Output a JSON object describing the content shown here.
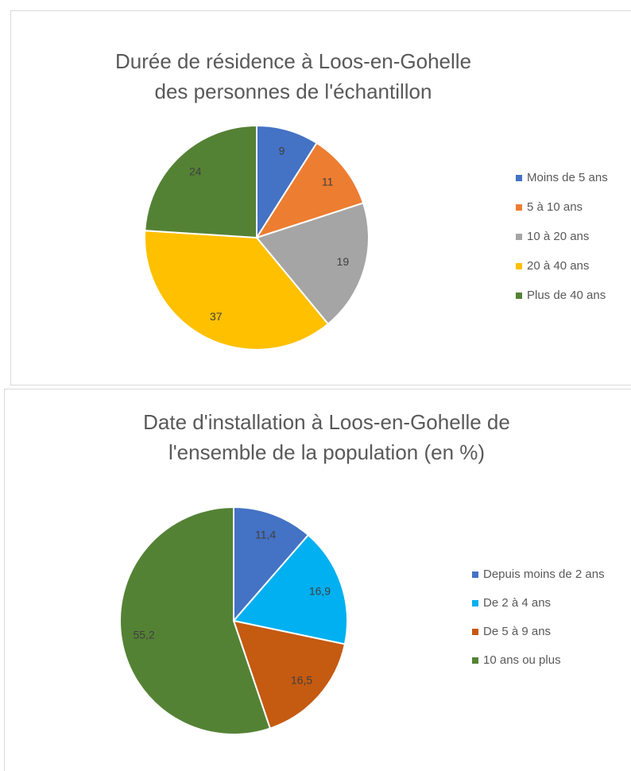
{
  "chart_data": [
    {
      "type": "pie",
      "title": "Durée de résidence à Loos-en-Gohelle des personnes de l'échantillon",
      "categories": [
        "Moins de 5 ans",
        "5 à 10 ans",
        "10 à 20 ans",
        "20 à 40 ans",
        "Plus de 40 ans"
      ],
      "values": [
        9,
        11,
        19,
        37,
        24
      ],
      "colors": [
        "#4472c4",
        "#ed7d31",
        "#a5a5a5",
        "#ffc000",
        "#548235"
      ],
      "legend": "right"
    },
    {
      "type": "pie",
      "title": "Date d'installation à Loos-en-Gohelle de l'ensemble de la population (en %)",
      "categories": [
        "Depuis moins de 2 ans",
        "De 2 à 4 ans",
        "De 5 à 9 ans",
        "10 ans ou plus"
      ],
      "values": [
        11.4,
        16.9,
        16.5,
        55.2
      ],
      "value_labels": [
        "11,4",
        "16,9",
        "16,5",
        "55,2"
      ],
      "colors": [
        "#4472c4",
        "#00b0f0",
        "#c55a11",
        "#548235"
      ],
      "legend": "right"
    }
  ]
}
